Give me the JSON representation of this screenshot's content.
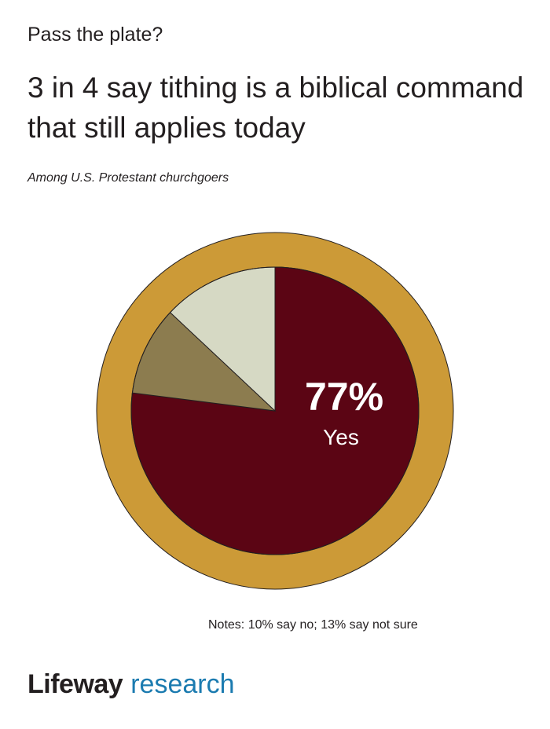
{
  "kicker": "Pass the plate?",
  "headline": "3 in 4 say tithing is a biblical command that still applies today",
  "subtitle": "Among U.S. Protestant churchgoers",
  "notes": "Notes: 10% say no; 13% say not sure",
  "logo": {
    "brand": "Lifeway",
    "sub": "research"
  },
  "colors": {
    "ring": "#cc9a37",
    "yes": "#5b0514",
    "no": "#8c7c4f",
    "not_sure": "#d6d9c4",
    "text": "#231f20",
    "logo_accent": "#1b7bb0"
  },
  "chart_data": {
    "type": "pie",
    "categories": [
      "Yes",
      "No",
      "Not sure"
    ],
    "values": [
      77,
      10,
      13
    ],
    "data_labels": {
      "value": "77%",
      "label": "Yes"
    }
  }
}
